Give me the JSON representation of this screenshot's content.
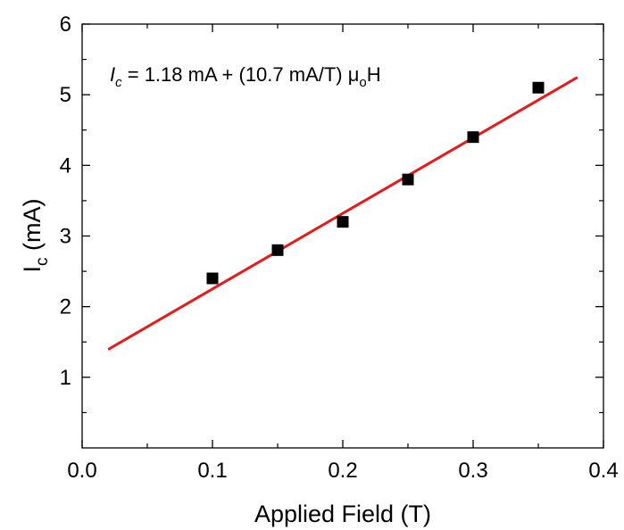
{
  "chart_data": {
    "type": "scatter",
    "xlabel": "Applied Field (T)",
    "ylabel": {
      "main": "I",
      "sub": "c",
      "rest": " (mA)"
    },
    "xlim": [
      0.0,
      0.4
    ],
    "ylim": [
      0,
      6
    ],
    "x_ticks": [
      "0.0",
      "0.1",
      "0.2",
      "0.3",
      "0.4"
    ],
    "y_ticks": [
      "1",
      "2",
      "3",
      "4",
      "5",
      "6"
    ],
    "grid": false,
    "legend": "none",
    "annotation": {
      "var": "I",
      "var_sub": "c",
      "middle": " = 1.18 mA + (10.7 mA/T) ",
      "mu": "μ",
      "mu_sub": "o",
      "end": "H"
    },
    "series": [
      {
        "marker": "square",
        "color": "#000000",
        "points": [
          {
            "x": 0.1,
            "y": 2.4
          },
          {
            "x": 0.15,
            "y": 2.8
          },
          {
            "x": 0.2,
            "y": 3.2
          },
          {
            "x": 0.25,
            "y": 3.8
          },
          {
            "x": 0.3,
            "y": 4.4
          },
          {
            "x": 0.35,
            "y": 5.1
          }
        ]
      }
    ],
    "fit_line": {
      "color": "#e41a1c",
      "intercept": 1.18,
      "slope": 10.7,
      "x_range": [
        0.02,
        0.38
      ]
    }
  }
}
